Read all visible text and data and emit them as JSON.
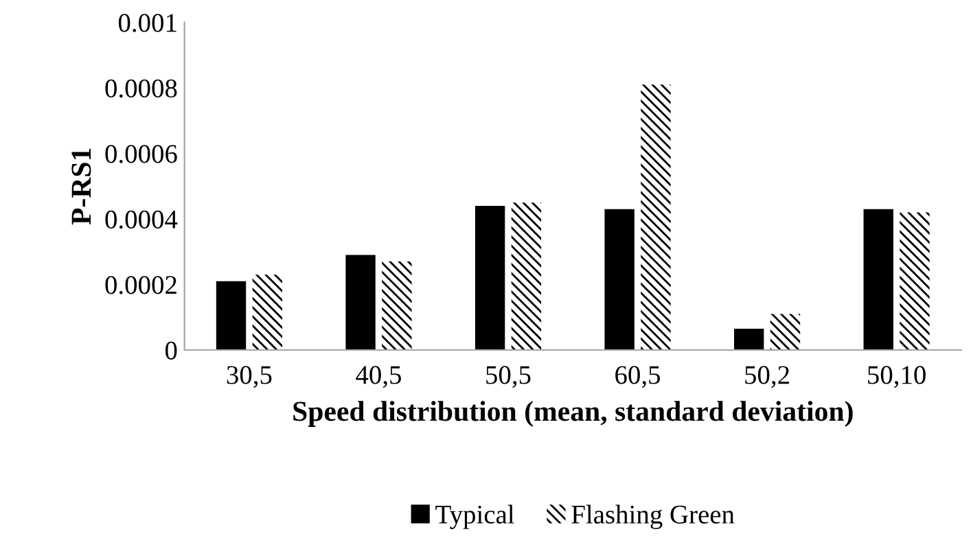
{
  "chart_data": {
    "type": "bar",
    "ylabel": "P-RS1",
    "xlabel": "Speed distribution (mean, standard deviation)",
    "categories": [
      "30,5",
      "40,5",
      "50,5",
      "60,5",
      "50,2",
      "50,10"
    ],
    "series": [
      {
        "name": "Typical",
        "color": "#000000",
        "values": [
          0.00021,
          0.00029,
          0.00044,
          0.00043,
          6.5e-05,
          0.00043
        ]
      },
      {
        "name": "Flashing Green",
        "color": "#000000",
        "values": [
          0.00023,
          0.00027,
          0.00045,
          0.00081,
          0.00011,
          0.00042
        ]
      }
    ],
    "ylim": [
      0,
      0.001
    ],
    "yticks": [
      0,
      0.0002,
      0.0004,
      0.0006,
      0.0008,
      0.001
    ],
    "grid": false,
    "legend": "bottom"
  }
}
